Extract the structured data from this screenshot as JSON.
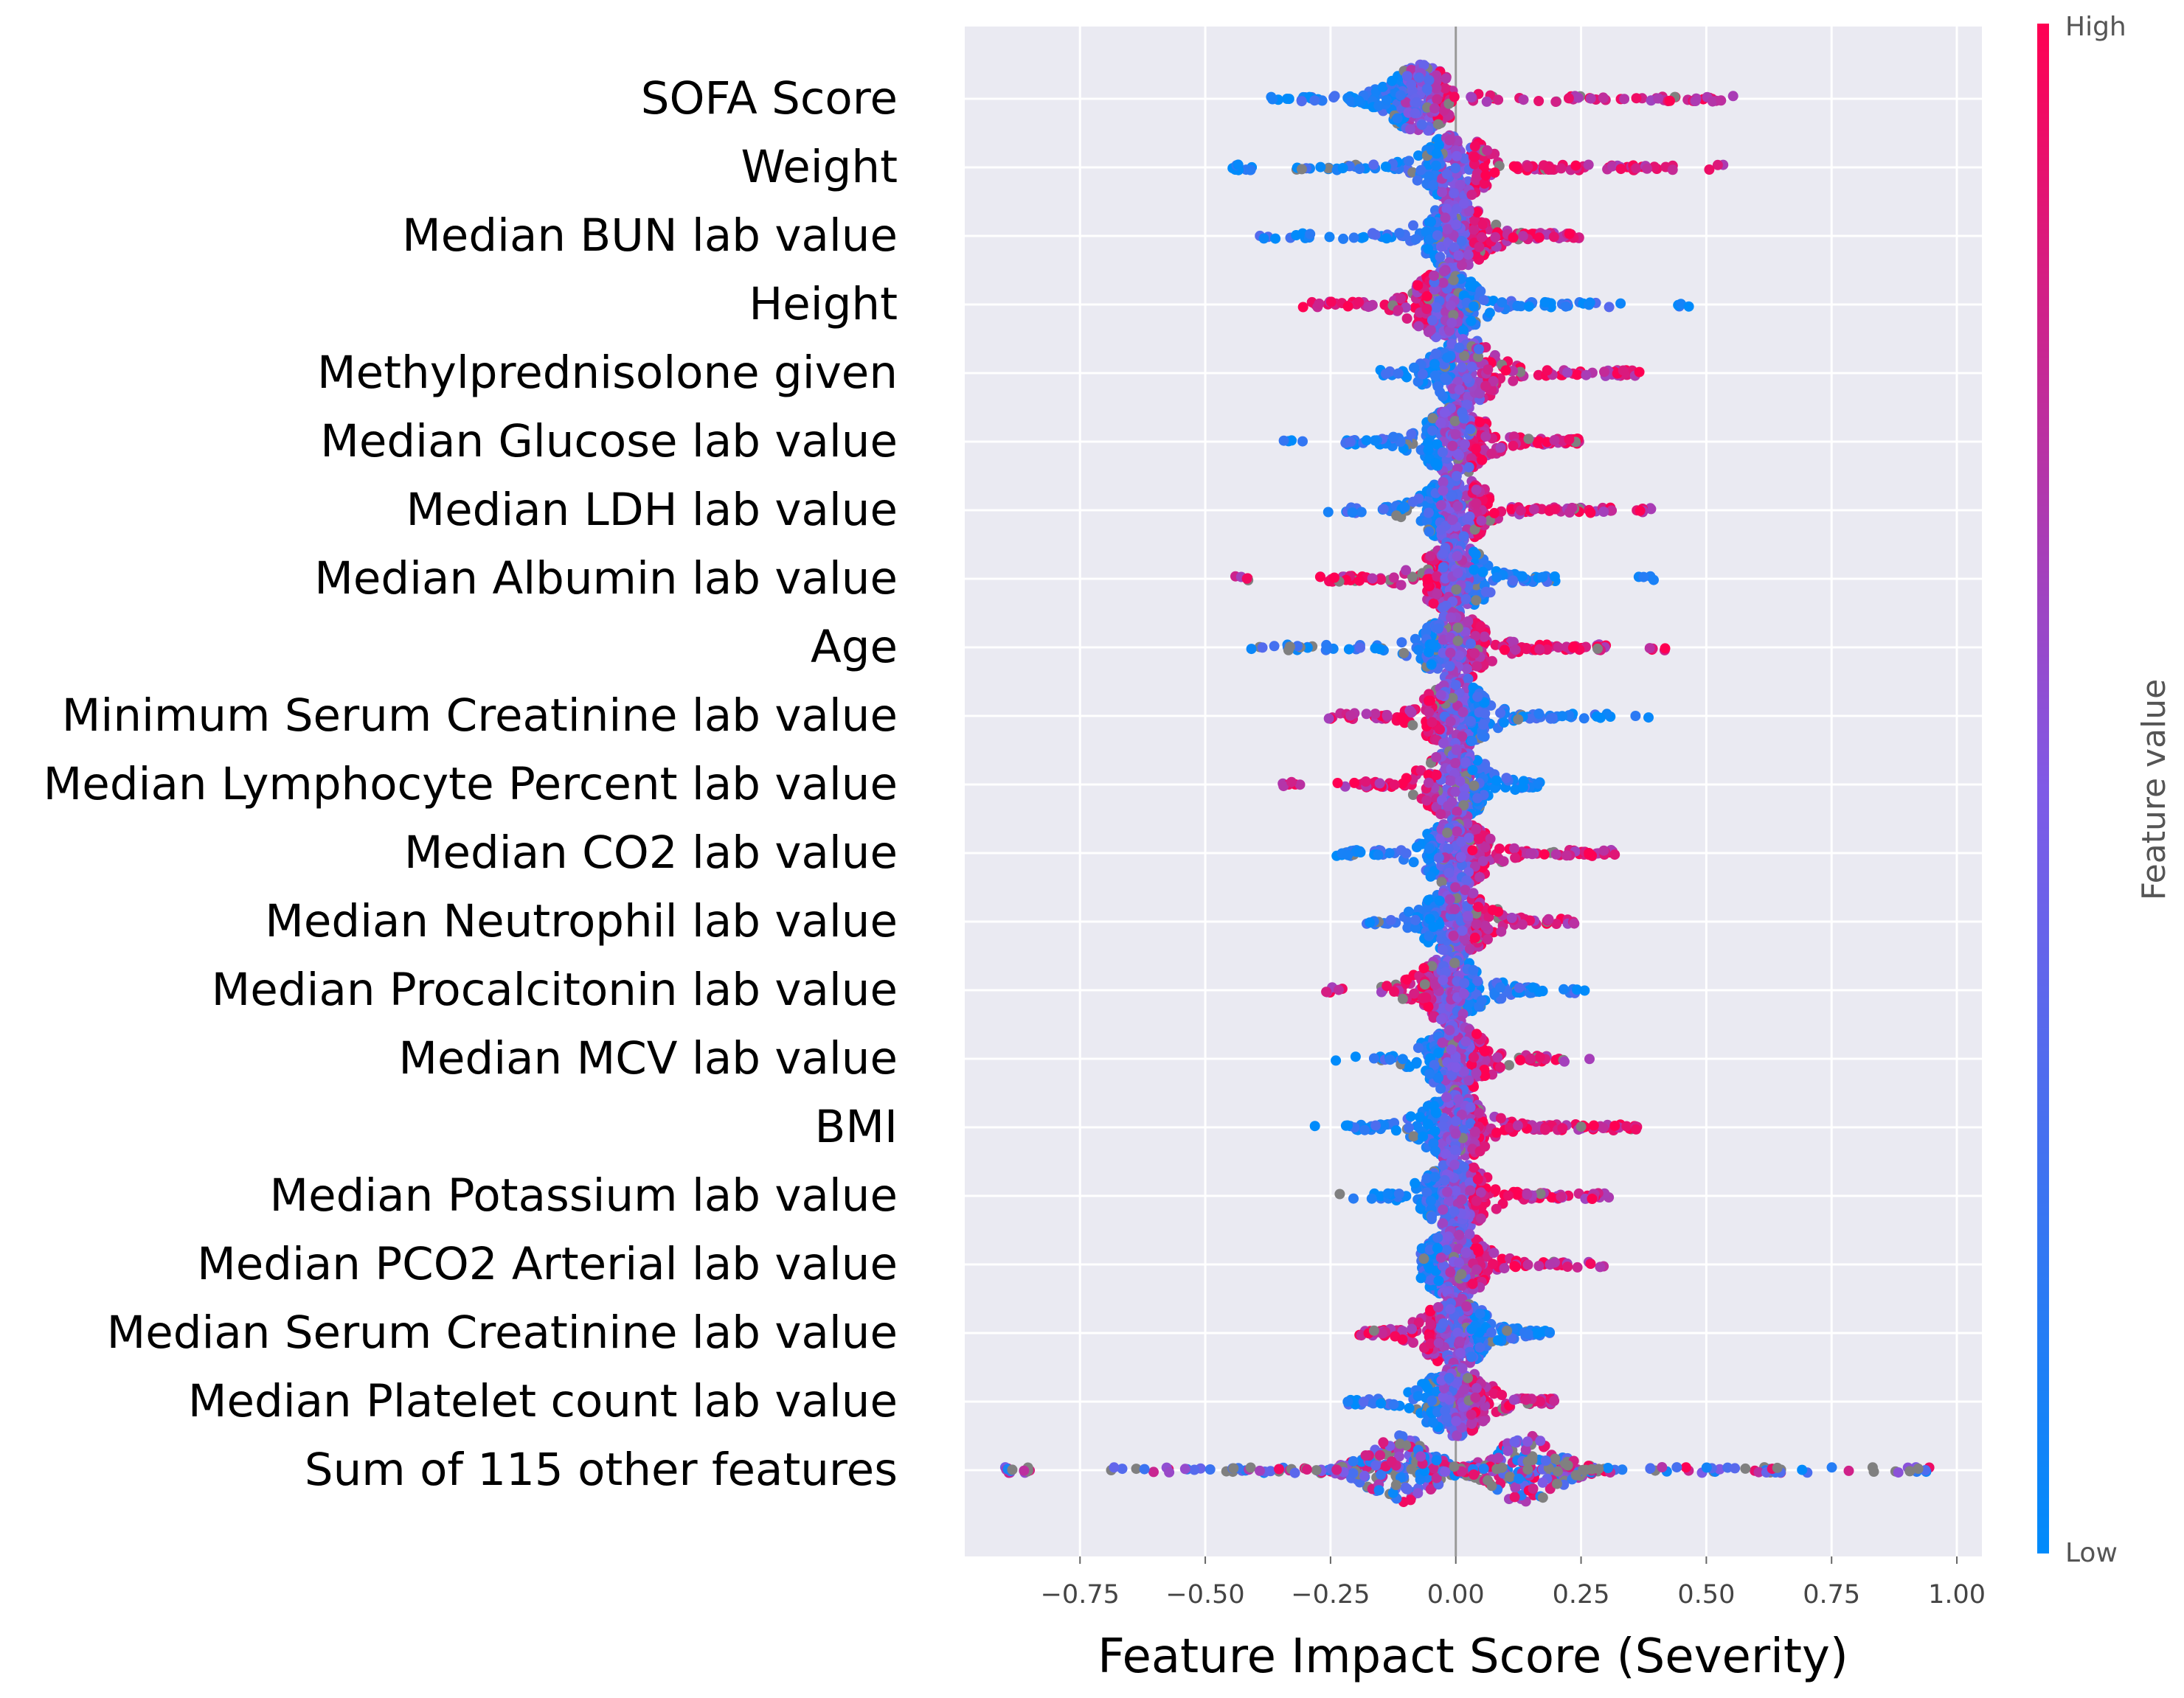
{
  "chart_data": {
    "type": "scatter",
    "subtype": "beeswarm",
    "title": "",
    "xlabel": "Feature Impact Score (Severity)",
    "ylabel": "",
    "xlim": [
      -0.98,
      1.05
    ],
    "xticks": [
      -0.75,
      -0.5,
      -0.25,
      0.0,
      0.25,
      0.5,
      0.75,
      1.0
    ],
    "xtick_labels": [
      "−0.75",
      "−0.50",
      "−0.25",
      "0.00",
      "0.25",
      "0.50",
      "0.75",
      "1.00"
    ],
    "grid": true,
    "colorbar": {
      "title": "Feature value",
      "high_label": "High",
      "low_label": "Low",
      "high_color": "#ff0052",
      "low_color": "#008bfb",
      "missing_color": "#808080"
    },
    "features": [
      {
        "name": "SOFA Score",
        "min": -0.37,
        "max": 0.6,
        "low_side": "left",
        "neg_spread": 0.25,
        "pos_spread": 0.6,
        "peak": -0.07
      },
      {
        "name": "Weight",
        "min": -0.45,
        "max": 0.55,
        "low_side": "left",
        "neg_spread": 0.32,
        "pos_spread": 0.45,
        "peak": 0.0
      },
      {
        "name": "Median BUN lab value",
        "min": -0.41,
        "max": 0.25,
        "low_side": "left",
        "neg_spread": 0.35,
        "pos_spread": 0.25,
        "peak": 0.0
      },
      {
        "name": "Height",
        "min": -0.32,
        "max": 0.49,
        "low_side": "right",
        "neg_spread": 0.27,
        "pos_spread": 0.35,
        "peak": -0.02
      },
      {
        "name": "Methylprednisolone given",
        "min": -0.16,
        "max": 0.37,
        "low_side": "left",
        "neg_spread": 0.16,
        "pos_spread": 0.35,
        "peak": 0.02
      },
      {
        "name": "Median Glucose lab value",
        "min": -0.35,
        "max": 0.25,
        "low_side": "left",
        "neg_spread": 0.22,
        "pos_spread": 0.25,
        "peak": 0.0
      },
      {
        "name": "Median LDH lab value",
        "min": -0.29,
        "max": 0.4,
        "low_side": "left",
        "neg_spread": 0.22,
        "pos_spread": 0.4,
        "peak": 0.0
      },
      {
        "name": "Median Albumin lab value",
        "min": -0.45,
        "max": 0.41,
        "low_side": "right",
        "neg_spread": 0.3,
        "pos_spread": 0.2,
        "peak": 0.0
      },
      {
        "name": "Age",
        "min": -0.41,
        "max": 0.43,
        "low_side": "left",
        "neg_spread": 0.34,
        "pos_spread": 0.3,
        "peak": 0.0
      },
      {
        "name": "Minimum Serum Creatinine lab value",
        "min": -0.26,
        "max": 0.4,
        "low_side": "right",
        "neg_spread": 0.22,
        "pos_spread": 0.31,
        "peak": 0.0
      },
      {
        "name": "Median Lymphocyte Percent lab value",
        "min": -0.36,
        "max": 0.17,
        "low_side": "right",
        "neg_spread": 0.24,
        "pos_spread": 0.17,
        "peak": 0.0
      },
      {
        "name": "Median CO2 lab value",
        "min": -0.24,
        "max": 0.32,
        "low_side": "left",
        "neg_spread": 0.24,
        "pos_spread": 0.32,
        "peak": 0.0
      },
      {
        "name": "Median Neutrophil lab value",
        "min": -0.18,
        "max": 0.24,
        "low_side": "left",
        "neg_spread": 0.14,
        "pos_spread": 0.19,
        "peak": 0.0
      },
      {
        "name": "Median Procalcitonin lab value",
        "min": -0.26,
        "max": 0.26,
        "low_side": "right",
        "neg_spread": 0.14,
        "pos_spread": 0.2,
        "peak": -0.01
      },
      {
        "name": "Median MCV lab value",
        "min": -0.24,
        "max": 0.3,
        "low_side": "left",
        "neg_spread": 0.17,
        "pos_spread": 0.22,
        "peak": 0.0
      },
      {
        "name": "BMI",
        "min": -0.33,
        "max": 0.37,
        "low_side": "left",
        "neg_spread": 0.22,
        "pos_spread": 0.37,
        "peak": 0.0
      },
      {
        "name": "Median Potassium lab value",
        "min": -0.24,
        "max": 0.31,
        "low_side": "left",
        "neg_spread": 0.17,
        "pos_spread": 0.31,
        "peak": 0.0
      },
      {
        "name": "Median PCO2 Arterial lab value",
        "min": -0.07,
        "max": 0.3,
        "low_side": "left",
        "neg_spread": 0.07,
        "pos_spread": 0.25,
        "peak": 0.0
      },
      {
        "name": "Median Serum Creatinine lab value",
        "min": -0.2,
        "max": 0.19,
        "low_side": "right",
        "neg_spread": 0.2,
        "pos_spread": 0.19,
        "peak": 0.0
      },
      {
        "name": "Median Platelet count lab value",
        "min": -0.22,
        "max": 0.2,
        "low_side": "left",
        "neg_spread": 0.22,
        "pos_spread": 0.2,
        "peak": 0.0
      },
      {
        "name": "Sum of 115 other features",
        "min": -0.9,
        "max": 0.95,
        "low_side": "mixed",
        "neg_spread": 0.6,
        "pos_spread": 0.76,
        "peak": -0.11,
        "peak2": 0.14
      }
    ]
  }
}
